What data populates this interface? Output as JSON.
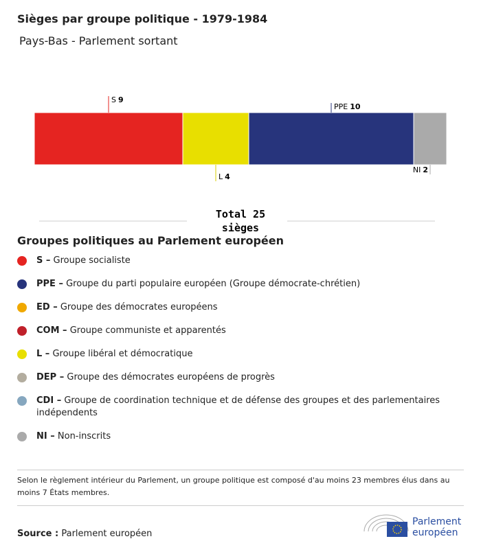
{
  "chart_data": {
    "type": "stacked-bar",
    "title": "Sièges par groupe politique - 1979-1984",
    "subtitle": "Pays-Bas - Parlement sortant",
    "series": [
      {
        "name": "S",
        "color": "#e52421",
        "values": [
          9
        ]
      },
      {
        "name": "L",
        "color": "#e8df00",
        "values": [
          4
        ]
      },
      {
        "name": "PPE",
        "color": "#27347c",
        "values": [
          10
        ]
      },
      {
        "name": "NI",
        "color": "#aaaaaa",
        "values": [
          2
        ]
      }
    ],
    "total_label": "Total",
    "total": 25,
    "total_unit": "sièges"
  },
  "legend": {
    "title": "Groupes politiques au Parlement européen",
    "items": [
      {
        "abbr": "S –",
        "name": "Groupe socialiste",
        "color": "#e52421"
      },
      {
        "abbr": "PPE –",
        "name": "Groupe du parti populaire européen (Groupe démocrate-chrétien)",
        "color": "#27347c"
      },
      {
        "abbr": "ED –",
        "name": "Groupe des démocrates européens",
        "color": "#f0a800"
      },
      {
        "abbr": "COM –",
        "name": "Groupe communiste et apparentés",
        "color": "#c0202a"
      },
      {
        "abbr": "L –",
        "name": "Groupe libéral et démocratique",
        "color": "#e8df00"
      },
      {
        "abbr": "DEP –",
        "name": "Groupe des démocrates européens de progrès",
        "color": "#b3ad9f"
      },
      {
        "abbr": "CDI –",
        "name": "Groupe de coordination technique et de défense des groupes et des parlementaires indépendents",
        "color": "#86a7bf"
      },
      {
        "abbr": "NI –",
        "name": "Non-inscrits",
        "color": "#aaaaaa"
      }
    ]
  },
  "footnote": "Selon le règlement intérieur du Parlement, un groupe politique est composé d'au moins 23 membres élus dans au moins 7 États membres.",
  "source": {
    "label": "Source :",
    "text": "Parlement européen"
  },
  "logo": {
    "line1": "Parlement",
    "line2": "européen"
  }
}
